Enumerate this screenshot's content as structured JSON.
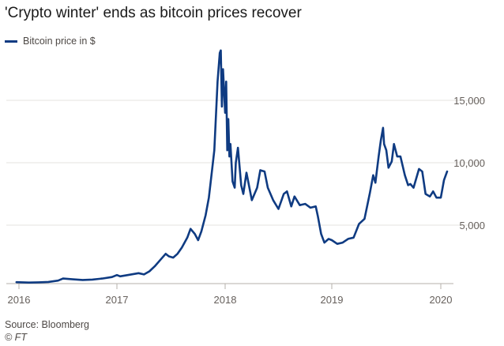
{
  "chart_data": {
    "type": "line",
    "title": "'Crypto winter' ends as bitcoin prices recover",
    "legend": [
      "Bitcoin price in $"
    ],
    "xlabel": "",
    "ylabel": "",
    "x_ticks": [
      "2016",
      "2017",
      "2018",
      "2019",
      "2020"
    ],
    "y_ticks": [
      "5,000",
      "10,000",
      "15,000"
    ],
    "ylim": [
      0,
      19000
    ],
    "xlim": [
      2016.0,
      2020.1
    ],
    "series": [
      {
        "name": "Bitcoin price in $",
        "color": "#0f3b82",
        "x": [
          2015.98,
          2016.1,
          2016.2,
          2016.3,
          2016.4,
          2016.45,
          2016.55,
          2016.65,
          2016.75,
          2016.85,
          2016.95,
          2017.0,
          2017.03,
          2017.1,
          2017.2,
          2017.25,
          2017.3,
          2017.35,
          2017.4,
          2017.45,
          2017.48,
          2017.52,
          2017.56,
          2017.6,
          2017.65,
          2017.68,
          2017.72,
          2017.75,
          2017.78,
          2017.82,
          2017.85,
          2017.88,
          2017.9,
          2017.93,
          2017.95,
          2017.96,
          2017.97,
          2017.98,
          2018.0,
          2018.01,
          2018.02,
          2018.03,
          2018.04,
          2018.05,
          2018.07,
          2018.09,
          2018.1,
          2018.12,
          2018.15,
          2018.17,
          2018.2,
          2018.25,
          2018.3,
          2018.33,
          2018.37,
          2018.4,
          2018.45,
          2018.5,
          2018.55,
          2018.58,
          2018.62,
          2018.65,
          2018.7,
          2018.75,
          2018.8,
          2018.85,
          2018.87,
          2018.9,
          2018.93,
          2018.97,
          2019.0,
          2019.05,
          2019.1,
          2019.15,
          2019.2,
          2019.25,
          2019.3,
          2019.35,
          2019.38,
          2019.4,
          2019.43,
          2019.45,
          2019.47,
          2019.48,
          2019.5,
          2019.52,
          2019.55,
          2019.57,
          2019.6,
          2019.63,
          2019.67,
          2019.7,
          2019.72,
          2019.75,
          2019.8,
          2019.83,
          2019.86,
          2019.9,
          2019.93,
          2019.96,
          2020.0,
          2020.03,
          2020.06
        ],
        "values": [
          430,
          400,
          420,
          450,
          560,
          720,
          660,
          610,
          640,
          720,
          840,
          1000,
          900,
          1000,
          1150,
          1050,
          1300,
          1700,
          2200,
          2700,
          2500,
          2400,
          2700,
          3200,
          4000,
          4700,
          4300,
          3800,
          4500,
          5800,
          7200,
          9500,
          11000,
          16500,
          18800,
          19000,
          14500,
          17500,
          14000,
          16500,
          11000,
          13500,
          10500,
          11500,
          8500,
          8000,
          10000,
          11200,
          8200,
          7500,
          9200,
          7000,
          8000,
          9400,
          9300,
          8000,
          7000,
          6300,
          7500,
          7700,
          6500,
          7300,
          6600,
          6700,
          6400,
          6500,
          5700,
          4300,
          3600,
          3900,
          3800,
          3500,
          3600,
          3900,
          4000,
          5100,
          5500,
          7600,
          9000,
          8400,
          10500,
          11800,
          12800,
          11500,
          11000,
          9600,
          10100,
          11500,
          10500,
          10500,
          9000,
          8200,
          8300,
          8000,
          9500,
          9300,
          7500,
          7300,
          7700,
          7200,
          7200,
          8600,
          9300
        ]
      }
    ],
    "grid": "horizontal"
  },
  "footer": {
    "source": "Source: Bloomberg",
    "credit": "© FT"
  }
}
